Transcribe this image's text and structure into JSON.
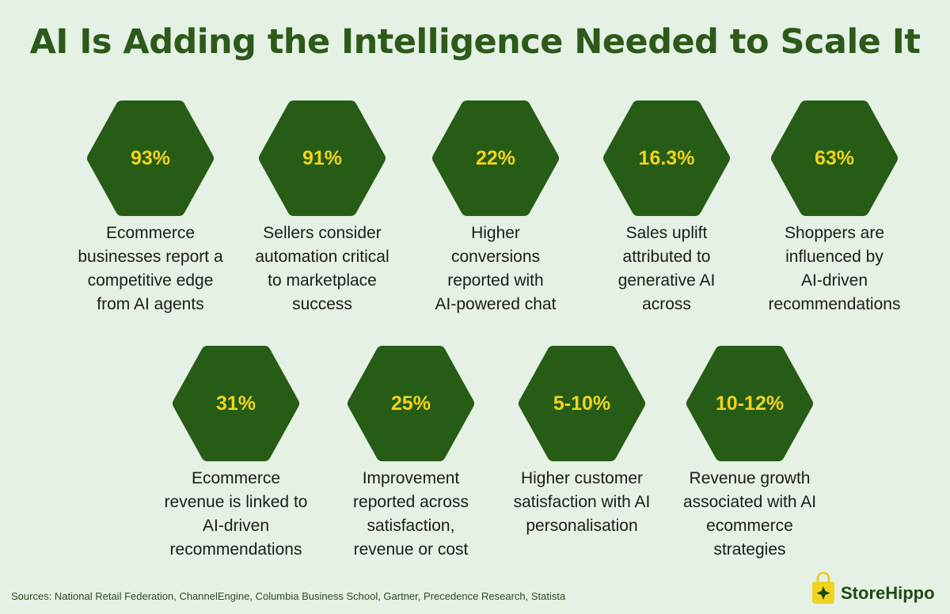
{
  "header": {
    "title": "AI Is Adding the Intelligence Needed to Scale It"
  },
  "stats": [
    {
      "value": "93%",
      "lines": [
        "Ecommerce",
        "businesses report a",
        "competitive edge",
        "from AI agents"
      ]
    },
    {
      "value": "91%",
      "lines": [
        "Sellers consider",
        "automation critical",
        "to marketplace",
        "success"
      ]
    },
    {
      "value": "22%",
      "lines": [
        "Higher",
        "conversions",
        "reported with",
        "AI-powered chat"
      ]
    },
    {
      "value": "16.3%",
      "lines": [
        "Sales uplift",
        "attributed to",
        "generative AI",
        "across"
      ]
    },
    {
      "value": "63%",
      "lines": [
        "Shoppers are",
        "influenced by",
        "AI-driven",
        "recommendations"
      ]
    },
    {
      "value": "31%",
      "lines": [
        "Ecommerce",
        "revenue is linked to",
        "AI-driven",
        "recommendations"
      ]
    },
    {
      "value": "25%",
      "lines": [
        "Improvement",
        "reported across",
        "satisfaction,",
        "revenue or cost"
      ]
    },
    {
      "value": "5-10%",
      "lines": [
        "Higher customer",
        "satisfaction with AI",
        "personalisation"
      ]
    },
    {
      "value": "10-12%",
      "lines": [
        "Revenue growth",
        "associated with AI",
        "ecommerce",
        "strategies"
      ]
    }
  ],
  "footer": {
    "sources": "Sources: National Retail Federation, ChannelEngine, Columbia Business School, Gartner, Precedence Research, Statista",
    "brand": "StoreHippo"
  }
}
